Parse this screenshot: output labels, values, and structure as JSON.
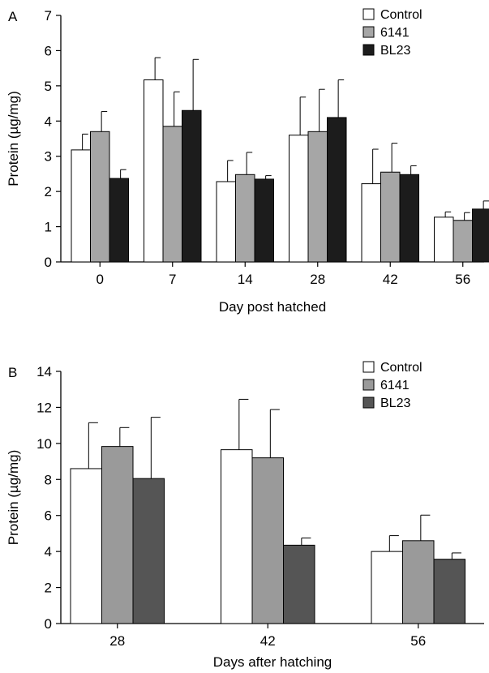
{
  "chart_data": [
    {
      "panel_label": "A",
      "type": "bar",
      "xlabel": "Day post hatched",
      "ylabel": "Protein (µg/mg)",
      "ylim": [
        0,
        7
      ],
      "yticks": [
        0,
        1,
        2,
        3,
        4,
        5,
        6,
        7
      ],
      "categories": [
        "0",
        "7",
        "14",
        "28",
        "42",
        "56"
      ],
      "legend_position": "top-right",
      "series": [
        {
          "name": "Control",
          "color": "#ffffff",
          "values": [
            3.18,
            5.17,
            2.28,
            3.6,
            2.22,
            1.27
          ],
          "errors": [
            0.45,
            0.63,
            0.6,
            1.08,
            0.98,
            0.15
          ]
        },
        {
          "name": "6141",
          "color": "#a6a6a6",
          "values": [
            3.7,
            3.85,
            2.48,
            3.7,
            2.55,
            1.18
          ],
          "errors": [
            0.57,
            0.98,
            0.63,
            1.2,
            0.82,
            0.22
          ]
        },
        {
          "name": "BL23",
          "color": "#1c1c1c",
          "values": [
            2.37,
            4.3,
            2.35,
            4.1,
            2.48,
            1.5
          ],
          "errors": [
            0.25,
            1.45,
            0.1,
            1.07,
            0.25,
            0.23
          ]
        }
      ]
    },
    {
      "panel_label": "B",
      "type": "bar",
      "xlabel": "Days after hatching",
      "ylabel": "Protein (µg/mg)",
      "ylim": [
        0,
        14
      ],
      "yticks": [
        0,
        2,
        4,
        6,
        8,
        10,
        12,
        14
      ],
      "categories": [
        "28",
        "42",
        "56"
      ],
      "legend_position": "top-right",
      "series": [
        {
          "name": "Control",
          "color": "#ffffff",
          "values": [
            8.6,
            9.65,
            4.0
          ],
          "errors": [
            2.55,
            2.8,
            0.88
          ]
        },
        {
          "name": "6141",
          "color": "#9a9a9a",
          "values": [
            9.83,
            9.2,
            4.6
          ],
          "errors": [
            1.05,
            2.68,
            1.42
          ]
        },
        {
          "name": "BL23",
          "color": "#555555",
          "values": [
            8.05,
            4.35,
            3.57
          ],
          "errors": [
            3.4,
            0.4,
            0.35
          ]
        }
      ]
    }
  ]
}
